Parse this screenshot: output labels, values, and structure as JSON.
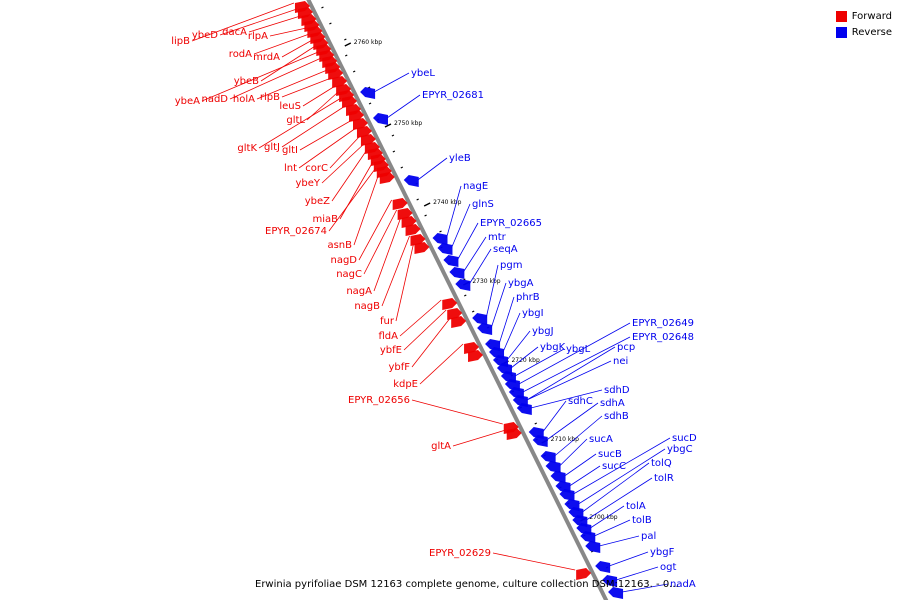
{
  "legend": {
    "forward_label": "Forward",
    "reverse_label": "Reverse",
    "forward_color": "#ee0000",
    "reverse_color": "#0000ee"
  },
  "caption": "Erwinia pyrifoliae DSM 12163 complete genome, culture collection DSM:12163. - 0...",
  "ticks": [
    "2760 kbp",
    "2750 kbp",
    "2740 kbp",
    "2730 kbp",
    "2720 kbp",
    "2710 kbp",
    "2700 kbp"
  ],
  "forward_genes": [
    "lipB",
    "ybeD",
    "dacA",
    "rlpA",
    "rodA",
    "mrdA",
    "ybeB",
    "ybeA",
    "nadD",
    "holA",
    "rlpB",
    "leuS",
    "gltL",
    "gltK",
    "gltJ",
    "gltI",
    "lnt",
    "corC",
    "ybeY",
    "ybeZ",
    "miaB",
    "EPYR_02674",
    "asnB",
    "nagD",
    "nagC",
    "nagA",
    "nagB",
    "fur",
    "fldA",
    "ybfE",
    "ybfF",
    "kdpE",
    "EPYR_02656",
    "gltA",
    "EPYR_02629"
  ],
  "reverse_genes": [
    "ybeL",
    "EPYR_02681",
    "yleB",
    "nagE",
    "glnS",
    "EPYR_02665",
    "mtr",
    "seqA",
    "pgm",
    "ybgA",
    "phrB",
    "ybgI",
    "ybgJ",
    "ybgK",
    "ybgL",
    "EPYR_02649",
    "EPYR_02648",
    "pcp",
    "nei",
    "sdhD",
    "sdhC",
    "sdhA",
    "sdhB",
    "sucA",
    "sucB",
    "sucC",
    "sucD",
    "ybgC",
    "tolQ",
    "tolR",
    "tolA",
    "tolB",
    "pal",
    "ybgF",
    "ogt",
    "nadA"
  ]
}
